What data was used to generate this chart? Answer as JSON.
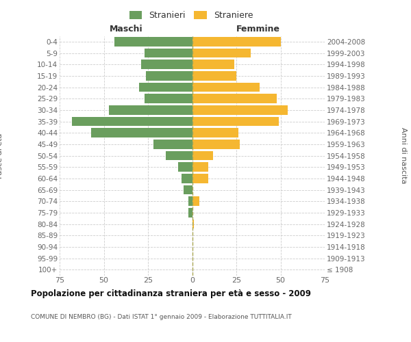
{
  "age_groups": [
    "100+",
    "95-99",
    "90-94",
    "85-89",
    "80-84",
    "75-79",
    "70-74",
    "65-69",
    "60-64",
    "55-59",
    "50-54",
    "45-49",
    "40-44",
    "35-39",
    "30-34",
    "25-29",
    "20-24",
    "15-19",
    "10-14",
    "5-9",
    "0-4"
  ],
  "birth_years": [
    "≤ 1908",
    "1909-1913",
    "1914-1918",
    "1919-1923",
    "1924-1928",
    "1929-1933",
    "1934-1938",
    "1939-1943",
    "1944-1948",
    "1949-1953",
    "1954-1958",
    "1959-1963",
    "1964-1968",
    "1969-1973",
    "1974-1978",
    "1979-1983",
    "1984-1988",
    "1989-1993",
    "1994-1998",
    "1999-2003",
    "2004-2008"
  ],
  "males": [
    0,
    0,
    0,
    0,
    0,
    2,
    2,
    5,
    6,
    8,
    15,
    22,
    57,
    68,
    47,
    27,
    30,
    26,
    29,
    27,
    44
  ],
  "females": [
    0,
    0,
    0,
    0,
    1,
    0,
    4,
    0,
    9,
    9,
    12,
    27,
    26,
    49,
    54,
    48,
    38,
    25,
    24,
    33,
    50
  ],
  "male_color": "#6a9e5e",
  "female_color": "#f5b731",
  "background_color": "#ffffff",
  "grid_color": "#cccccc",
  "title": "Popolazione per cittadinanza straniera per età e sesso - 2009",
  "subtitle": "COMUNE DI NEMBRO (BG) - Dati ISTAT 1° gennaio 2009 - Elaborazione TUTTITALIA.IT",
  "ylabel_left": "Fasce di età",
  "ylabel_right": "Anni di nascita",
  "legend_male": "Stranieri",
  "legend_female": "Straniere",
  "xlim": 75,
  "label_maschi": "Maschi",
  "label_femmine": "Femmine"
}
